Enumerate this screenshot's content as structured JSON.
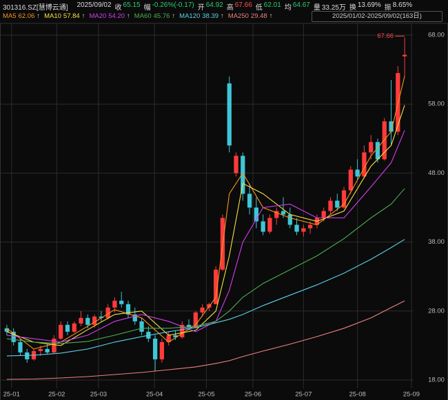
{
  "header": {
    "symbol": "301316.SZ[慧博云通]",
    "date": "2025/09/02",
    "items": [
      {
        "label": "收",
        "value": "65.15",
        "color": "#2ecc71"
      },
      {
        "label": "幅",
        "value": "-0.26%(-0.17)",
        "color": "#2ecc71"
      },
      {
        "label": "开",
        "value": "64.92",
        "color": "#2ecc71"
      },
      {
        "label": "高",
        "value": "67.66",
        "color": "#ff4d4d"
      },
      {
        "label": "低",
        "value": "62.01",
        "color": "#2ecc71"
      },
      {
        "label": "均",
        "value": "64.67",
        "color": "#2ecc71"
      },
      {
        "label": "量",
        "value": "33.25万",
        "color": "#dddddd"
      },
      {
        "label": "换",
        "value": "13.69%",
        "color": "#dddddd"
      },
      {
        "label": "振",
        "value": "8.65%",
        "color": "#dddddd"
      }
    ],
    "range": "2025/01/02-2025/09/02(163日)"
  },
  "chart_data": {
    "type": "candlestick",
    "up_color": "#ff3b3b",
    "down_color": "#3ec6d8",
    "grid": true,
    "categories": [
      null,
      null,
      null,
      null,
      null,
      null,
      null,
      null,
      null,
      null,
      null,
      null,
      null,
      null,
      null,
      null,
      null,
      null,
      null,
      null,
      null,
      null,
      null,
      null,
      null,
      null,
      null,
      null,
      null,
      null,
      null,
      null,
      null,
      null,
      null,
      null,
      null,
      null,
      null,
      null,
      null,
      null,
      null,
      null,
      null,
      null,
      null,
      null,
      null,
      null,
      null,
      null,
      null,
      null,
      null,
      null,
      null,
      null,
      null,
      null
    ],
    "open": [
      25.5,
      25,
      23.5,
      22,
      21,
      22.2,
      22.5,
      22,
      24,
      26,
      25,
      26.2,
      27,
      26,
      27.2,
      27,
      28.5,
      29.5,
      29,
      27.5,
      26.5,
      25,
      24,
      21,
      23.5,
      24.5,
      24.2,
      26,
      25.6,
      27.8,
      28.5,
      29,
      34,
      61,
      48,
      50.5,
      45,
      43,
      41,
      39.5,
      41.5,
      42.5,
      42,
      40.5,
      39.5,
      40,
      40.5,
      41.5,
      42.5,
      44,
      43,
      45.5,
      48.5,
      47.5,
      51,
      52.5,
      50,
      55.5,
      54,
      64.92
    ],
    "high": [
      26,
      25.5,
      24,
      22.5,
      22.5,
      23,
      23.2,
      24.5,
      26.5,
      26.5,
      26.5,
      28,
      27.5,
      27.5,
      28,
      29,
      30,
      30.8,
      29.5,
      28.5,
      27,
      25.8,
      24.5,
      24,
      25,
      25.2,
      26.5,
      26.8,
      28,
      29,
      29.2,
      34.5,
      42,
      62,
      51,
      51,
      46.5,
      44.5,
      42,
      42,
      43,
      44.5,
      43,
      41.5,
      40.5,
      41,
      42,
      43,
      44.5,
      45,
      46,
      49,
      50,
      52,
      53.5,
      53,
      56,
      61.5,
      63.5,
      67.66
    ],
    "low": [
      24.5,
      23,
      21.5,
      20.5,
      20.8,
      21.5,
      21.8,
      21.8,
      23.8,
      24.5,
      24.8,
      25.8,
      25.5,
      25.6,
      26.5,
      26.8,
      27.8,
      28.5,
      27,
      26,
      24.5,
      23.5,
      19.3,
      20.5,
      23,
      23.8,
      24,
      25.2,
      25.5,
      27.2,
      28,
      29,
      33.8,
      51,
      47.5,
      44,
      42,
      40,
      39,
      39.2,
      40.5,
      41.5,
      40,
      39,
      38.8,
      39.2,
      40,
      41,
      42,
      42.5,
      42.8,
      45,
      47,
      47.2,
      50,
      49.5,
      49.8,
      52,
      53.5,
      62.01
    ],
    "close": [
      25,
      23.5,
      22,
      21,
      22.2,
      22.5,
      22,
      24,
      26,
      25,
      26.2,
      27,
      26,
      27.2,
      27,
      28.5,
      29.5,
      29,
      27.5,
      26.5,
      25,
      24,
      21,
      23.5,
      24.5,
      24.2,
      26,
      25.6,
      27.8,
      28.5,
      29,
      34,
      41.5,
      52,
      50.5,
      45,
      43,
      41,
      39.5,
      41.5,
      42.5,
      42,
      40.5,
      39.5,
      40,
      40.5,
      41.5,
      42.5,
      44,
      43,
      45.5,
      48.5,
      47.5,
      51,
      52.5,
      50,
      55.5,
      54,
      62.5,
      65.15
    ],
    "series": [
      {
        "name": "MA5",
        "color": "#f7931e",
        "legend_value": "62.06",
        "x": [
          0,
          4,
          8,
          12,
          16,
          20,
          24,
          28,
          31,
          33,
          35,
          38,
          42,
          46,
          50,
          54,
          57,
          59
        ],
        "values": [
          25.5,
          22.5,
          23.5,
          25.8,
          28.2,
          27,
          23.5,
          26,
          30,
          45,
          48,
          43,
          41.5,
          40.5,
          43.5,
          50.5,
          54,
          62.06
        ]
      },
      {
        "name": "MA10",
        "color": "#f5e342",
        "legend_value": "57.84",
        "x": [
          0,
          4,
          8,
          12,
          16,
          20,
          24,
          28,
          31,
          33,
          35,
          38,
          42,
          46,
          50,
          54,
          57,
          59
        ],
        "values": [
          25,
          23.5,
          23,
          25.3,
          27.5,
          28,
          24.5,
          25.2,
          28,
          36,
          46.5,
          45,
          42,
          41,
          42.5,
          49,
          52,
          57.84
        ]
      },
      {
        "name": "MA20",
        "color": "#d63cf2",
        "legend_value": "54.20",
        "x": [
          0,
          4,
          8,
          12,
          16,
          20,
          24,
          28,
          31,
          33,
          35,
          38,
          42,
          46,
          50,
          54,
          57,
          59
        ],
        "values": [
          24.5,
          24,
          23.5,
          24.5,
          26.5,
          27.5,
          26.5,
          25,
          26.5,
          31,
          38,
          43,
          43.5,
          41.5,
          41.5,
          46,
          49.5,
          54.2
        ]
      },
      {
        "name": "MA60",
        "color": "#4caf50",
        "legend_value": "45.76",
        "x": [
          0,
          4,
          8,
          12,
          16,
          20,
          24,
          28,
          31,
          33,
          35,
          38,
          42,
          46,
          50,
          54,
          57,
          59
        ],
        "values": [
          24,
          23.5,
          23.3,
          23.6,
          24.5,
          25.5,
          25.5,
          25.8,
          26.5,
          28,
          30,
          32,
          34,
          36,
          38.5,
          41.5,
          43.5,
          45.76
        ]
      },
      {
        "name": "MA120",
        "color": "#5ad1e6",
        "legend_value": "38.39",
        "x": [
          0,
          4,
          8,
          12,
          16,
          20,
          24,
          28,
          31,
          33,
          35,
          38,
          42,
          46,
          50,
          54,
          57,
          59
        ],
        "values": [
          21.5,
          21.6,
          21.9,
          22.5,
          23.5,
          24.3,
          25,
          25.6,
          26.3,
          26.8,
          27.5,
          28.8,
          30.3,
          31.8,
          33.5,
          35.5,
          37.2,
          38.39
        ]
      },
      {
        "name": "MA250",
        "color": "#f08080",
        "legend_value": "29.48",
        "x": [
          0,
          4,
          8,
          12,
          16,
          20,
          24,
          28,
          31,
          33,
          35,
          38,
          42,
          46,
          50,
          54,
          57,
          59
        ],
        "values": [
          18.1,
          18.15,
          18.3,
          18.5,
          18.8,
          19.1,
          19.5,
          19.9,
          20.4,
          20.8,
          21.4,
          22.2,
          23.2,
          24.3,
          25.5,
          27,
          28.5,
          29.48
        ]
      }
    ],
    "ylim": [
      17.1,
      69.1
    ],
    "yticks": [
      {
        "value": 68,
        "label": "68.00"
      },
      {
        "value": 58,
        "label": "58.00"
      },
      {
        "value": 48,
        "label": "48.00"
      },
      {
        "value": 38,
        "label": "38.00"
      },
      {
        "value": 28,
        "label": "28.00"
      },
      {
        "value": 18,
        "label": "18.00"
      }
    ],
    "xticks": [
      {
        "value": 0.7,
        "label": "25-01"
      },
      {
        "value": 7.4,
        "label": "25-02"
      },
      {
        "value": 13.6,
        "label": "25-03"
      },
      {
        "value": 21.9,
        "label": "25-04"
      },
      {
        "value": 29.6,
        "label": "25-05"
      },
      {
        "value": 36.5,
        "label": "25-06"
      },
      {
        "value": 44,
        "label": "25-07"
      },
      {
        "value": 52,
        "label": "25-08"
      },
      {
        "value": 60,
        "label": "25-09"
      }
    ],
    "annotation": {
      "text": "67.66",
      "color": "#ff4d4d"
    }
  }
}
